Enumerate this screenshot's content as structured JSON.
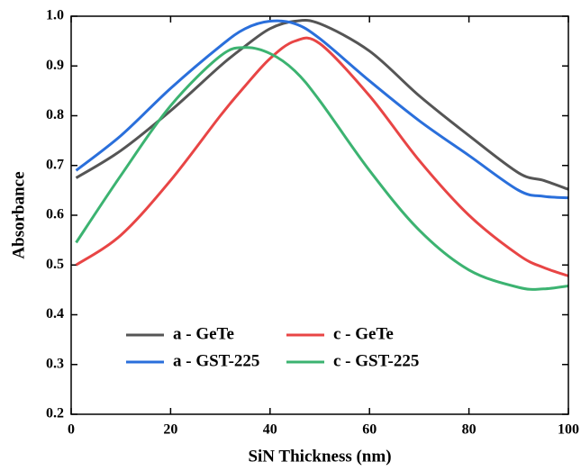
{
  "chart_data": {
    "type": "line",
    "x_label": "SiN Thickness (nm)",
    "y_label": "Absorbance",
    "x": [
      1,
      10,
      20,
      30,
      35,
      40,
      45,
      50,
      60,
      70,
      80,
      90,
      95,
      100
    ],
    "series": [
      {
        "name": "a - GeTe",
        "color": "#555555",
        "values": [
          0.675,
          0.73,
          0.81,
          0.9,
          0.94,
          0.975,
          0.99,
          0.985,
          0.93,
          0.84,
          0.76,
          0.685,
          0.67,
          0.652
        ]
      },
      {
        "name": "a - GST-225",
        "color": "#2a6fdb",
        "values": [
          0.69,
          0.76,
          0.855,
          0.94,
          0.975,
          0.99,
          0.985,
          0.955,
          0.87,
          0.79,
          0.72,
          0.65,
          0.638,
          0.635
        ]
      },
      {
        "name": "c - GeTe",
        "color": "#e84545",
        "values": [
          0.5,
          0.56,
          0.67,
          0.8,
          0.86,
          0.915,
          0.95,
          0.945,
          0.84,
          0.71,
          0.6,
          0.52,
          0.495,
          0.478
        ]
      },
      {
        "name": "c - GST-225",
        "color": "#3cb371",
        "values": [
          0.545,
          0.68,
          0.82,
          0.92,
          0.937,
          0.925,
          0.89,
          0.83,
          0.69,
          0.57,
          0.49,
          0.455,
          0.452,
          0.458
        ]
      }
    ],
    "xlim": [
      0,
      100
    ],
    "xticks": [
      0,
      20,
      40,
      60,
      80,
      100
    ],
    "ylim": [
      0.2,
      1
    ],
    "yticks": [
      0.2,
      0.3,
      0.4,
      0.5,
      0.6,
      0.7,
      0.8,
      0.9,
      {
        "value": 1,
        "label": "1.0"
      }
    ],
    "grid": false
  }
}
